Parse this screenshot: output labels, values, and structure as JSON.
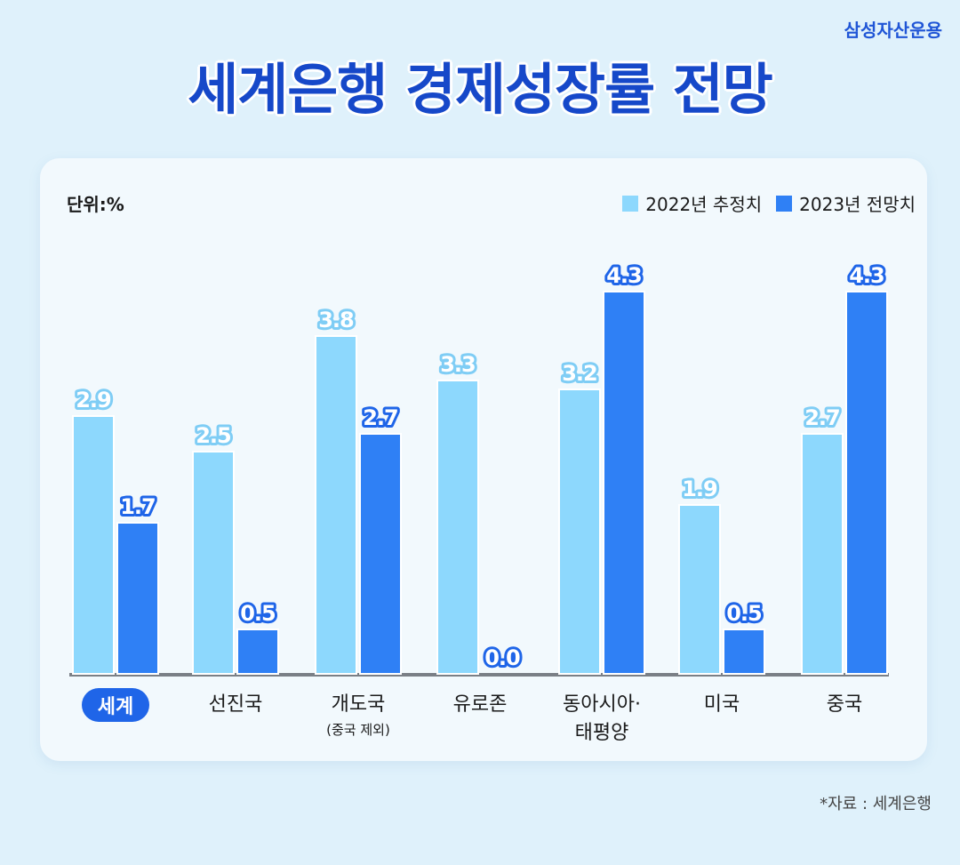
{
  "header": {
    "brand": "삼성자산운용",
    "title": "세계은행 경제성장률 전망"
  },
  "colors": {
    "series_2022": "#8dd8fd",
    "series_2023": "#2f80f5",
    "label_2022_stroke": "#7fcdf5",
    "label_2023_stroke": "#1f65e8"
  },
  "chart_data": {
    "type": "bar",
    "title": "세계은행 경제성장률 전망",
    "unit_label": "단위:%",
    "categories": [
      "세계",
      "선진국",
      "개도국",
      "유로존",
      "동아시아·",
      "미국",
      "중국"
    ],
    "category_sub": [
      "",
      "",
      "(중국 제외)",
      "",
      "태평양",
      "",
      ""
    ],
    "highlight_category": "세계",
    "series": [
      {
        "name": "2022년 추정치",
        "values": [
          2.9,
          2.5,
          3.8,
          3.3,
          3.2,
          1.9,
          2.7
        ],
        "labels": [
          "2.9",
          "2.5",
          "3.8",
          "3.3",
          "3.2",
          "1.9",
          "2.7"
        ]
      },
      {
        "name": "2023년 전망치",
        "values": [
          1.7,
          0.5,
          2.7,
          0.0,
          4.3,
          0.5,
          4.3
        ],
        "labels": [
          "1.7",
          "0.5",
          "2.7",
          "0.0",
          "4.3",
          "0.5",
          "4.3"
        ]
      }
    ],
    "ylim": [
      0,
      4.3
    ],
    "legend_position": "top-right",
    "grid": false
  },
  "footer": {
    "source": "*자료 : 세계은행"
  }
}
